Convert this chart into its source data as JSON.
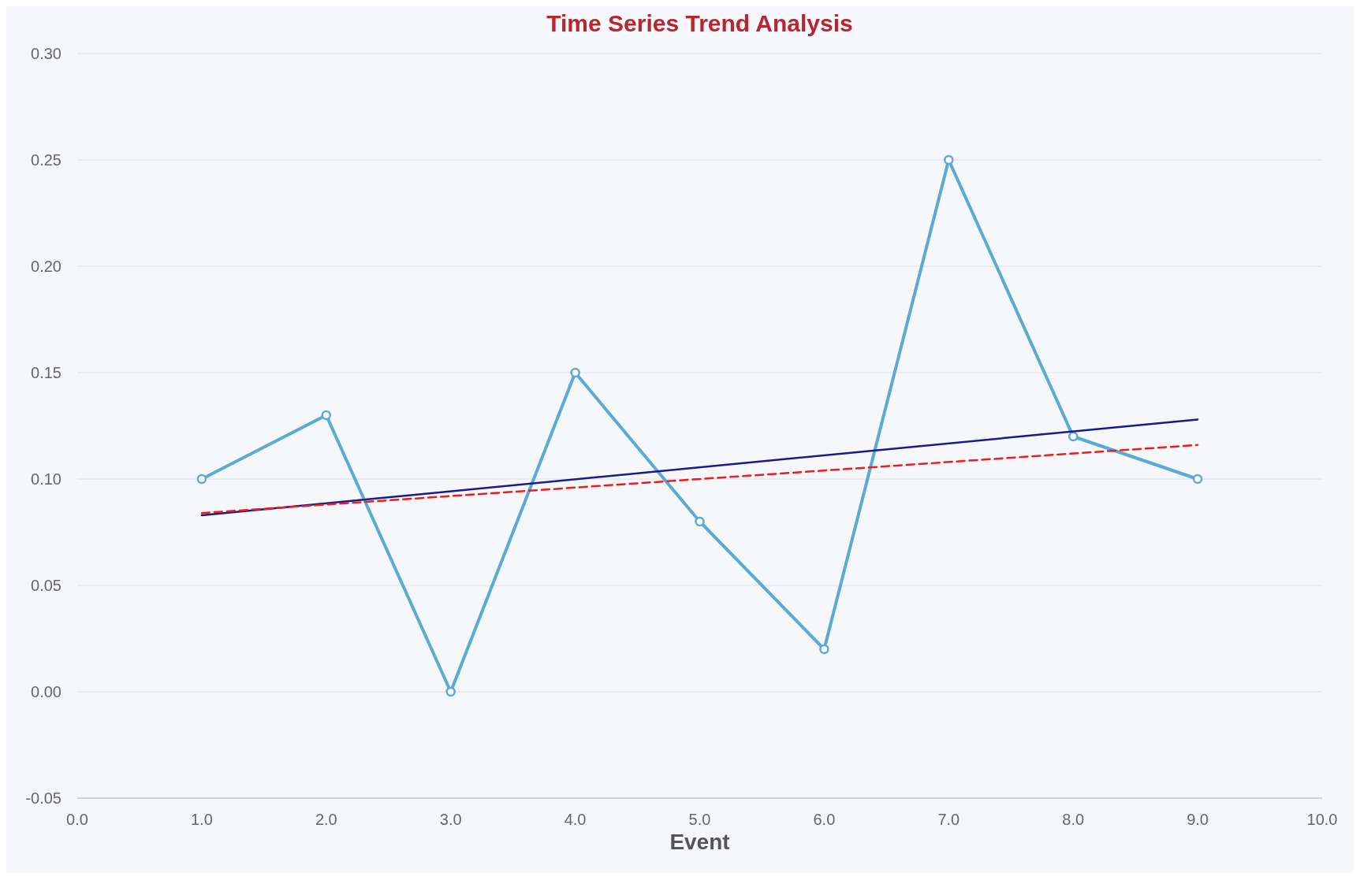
{
  "chart_data": {
    "type": "line",
    "title": "Time Series Trend Analysis",
    "xlabel": "Event",
    "xlim": [
      0,
      10
    ],
    "xticks": [
      {
        "value": 0,
        "label": "0.0"
      },
      {
        "value": 1,
        "label": "1.0"
      },
      {
        "value": 2,
        "label": "2.0"
      },
      {
        "value": 3,
        "label": "3.0"
      },
      {
        "value": 4,
        "label": "4.0"
      },
      {
        "value": 5,
        "label": "5.0"
      },
      {
        "value": 6,
        "label": "6.0"
      },
      {
        "value": 7,
        "label": "7.0"
      },
      {
        "value": 8,
        "label": "8.0"
      },
      {
        "value": 9,
        "label": "9.0"
      },
      {
        "value": 10,
        "label": "10.0"
      }
    ],
    "ylim": [
      -0.05,
      0.3
    ],
    "yticks": [
      {
        "value": -0.05,
        "label": "-0.05"
      },
      {
        "value": 0,
        "label": "0.00"
      },
      {
        "value": 0.05,
        "label": "0.05"
      },
      {
        "value": 0.1,
        "label": "0.10"
      },
      {
        "value": 0.15,
        "label": "0.15"
      },
      {
        "value": 0.2,
        "label": "0.20"
      },
      {
        "value": 0.25,
        "label": "0.25"
      },
      {
        "value": 0.3,
        "label": "0.30"
      }
    ],
    "grid": "y",
    "series": [
      {
        "color": "#5aaad6",
        "x": [
          1,
          2,
          3,
          4,
          5,
          6,
          7,
          8,
          9
        ],
        "values": [
          0.1,
          0.13,
          0,
          0.15,
          0.08,
          0.02,
          0.25,
          0.12,
          0.1
        ],
        "marker": "circle",
        "line_style": "solid"
      },
      {
        "color": "#1a1a8c",
        "x": [
          1,
          9
        ],
        "values": [
          0.083,
          0.128
        ],
        "marker": "none",
        "line_style": "solid"
      },
      {
        "color": "#ee1c1c",
        "x": [
          1,
          9
        ],
        "values": [
          0.084,
          0.116
        ],
        "marker": "none",
        "line_style": "dashed"
      }
    ]
  }
}
